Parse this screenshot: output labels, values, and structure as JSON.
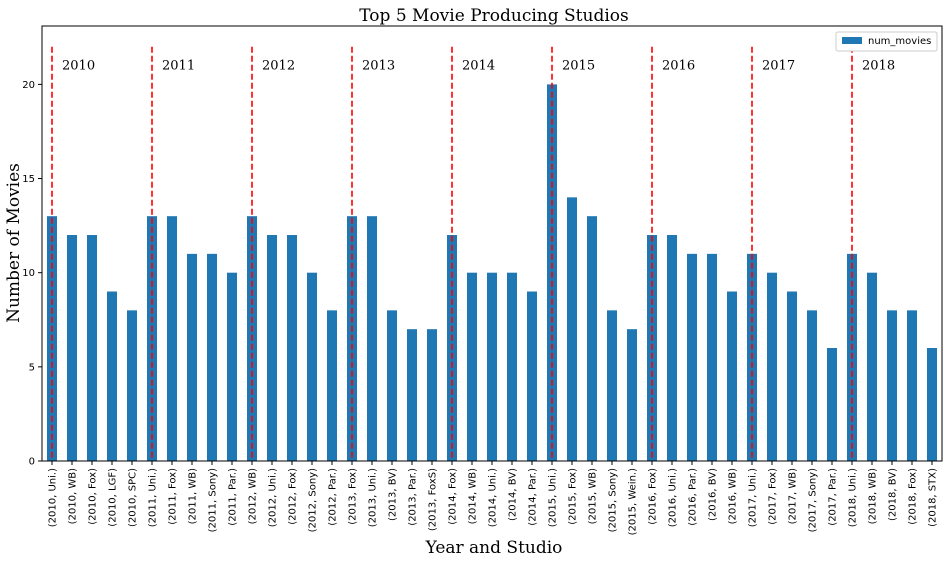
{
  "chart_data": {
    "type": "bar",
    "title": "Top 5 Movie Producing Studios",
    "xlabel": "Year and Studio",
    "ylabel": "Number of Movies",
    "ylim": [
      0,
      23.1
    ],
    "yticks": [
      0,
      5,
      10,
      15,
      20
    ],
    "grid": false,
    "legend": {
      "placement": "top-right",
      "entries": [
        "num_movies"
      ]
    },
    "categories": [
      "(2010, Uni.)",
      "(2010, WB)",
      "(2010, Fox)",
      "(2010, LGF)",
      "(2010, SPC)",
      "(2011, Uni.)",
      "(2011, Fox)",
      "(2011, WB)",
      "(2011, Sony)",
      "(2011, Par.)",
      "(2012, WB)",
      "(2012, Uni.)",
      "(2012, Fox)",
      "(2012, Sony)",
      "(2012, Par.)",
      "(2013, Fox)",
      "(2013, Uni.)",
      "(2013, BV)",
      "(2013, Par.)",
      "(2013, FoxS)",
      "(2014, Fox)",
      "(2014, WB)",
      "(2014, Uni.)",
      "(2014, BV)",
      "(2014, Par.)",
      "(2015, Uni.)",
      "(2015, Fox)",
      "(2015, WB)",
      "(2015, Sony)",
      "(2015, Wein.)",
      "(2016, Fox)",
      "(2016, Uni.)",
      "(2016, Par.)",
      "(2016, BV)",
      "(2016, WB)",
      "(2017, Uni.)",
      "(2017, Fox)",
      "(2017, WB)",
      "(2017, Sony)",
      "(2017, Par.)",
      "(2018, Uni.)",
      "(2018, WB)",
      "(2018, BV)",
      "(2018, Fox)",
      "(2018, STX)"
    ],
    "series": [
      {
        "name": "num_movies",
        "color": "#1f77b4",
        "values": [
          13,
          12,
          12,
          9,
          8,
          13,
          13,
          11,
          11,
          10,
          13,
          12,
          12,
          10,
          8,
          13,
          13,
          8,
          7,
          7,
          12,
          10,
          10,
          10,
          9,
          20,
          14,
          13,
          8,
          7,
          12,
          12,
          11,
          11,
          9,
          11,
          10,
          9,
          8,
          6,
          11,
          10,
          8,
          8,
          6
        ]
      }
    ],
    "year_markers": {
      "color": "#ff0000",
      "style": "dashed",
      "labels": [
        "2010",
        "2011",
        "2012",
        "2013",
        "2014",
        "2015",
        "2016",
        "2017",
        "2018"
      ],
      "at_category_index": [
        0,
        5,
        10,
        15,
        20,
        25,
        30,
        35,
        40
      ]
    }
  }
}
